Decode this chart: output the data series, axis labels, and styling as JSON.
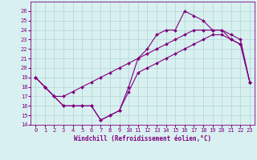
{
  "xlabel": "Windchill (Refroidissement éolien,°C)",
  "x_values": [
    0,
    1,
    2,
    3,
    4,
    5,
    6,
    7,
    8,
    9,
    10,
    11,
    12,
    13,
    14,
    15,
    16,
    17,
    18,
    19,
    20,
    21,
    22,
    23
  ],
  "temp_line": [
    19.0,
    18.0,
    17.0,
    17.0,
    17.5,
    18.0,
    18.5,
    19.0,
    19.5,
    20.0,
    20.5,
    21.0,
    21.5,
    22.0,
    22.5,
    23.0,
    23.5,
    24.0,
    24.0,
    24.0,
    24.0,
    23.5,
    23.0,
    18.5
  ],
  "windchill_line": [
    19.0,
    18.0,
    17.0,
    16.0,
    16.0,
    16.0,
    16.0,
    14.5,
    15.0,
    15.5,
    18.0,
    21.0,
    22.0,
    23.5,
    24.0,
    24.0,
    26.0,
    25.5,
    25.0,
    24.0,
    24.0,
    23.0,
    22.5,
    18.5
  ],
  "wind_line": [
    19.0,
    18.0,
    17.0,
    16.0,
    16.0,
    16.0,
    16.0,
    14.5,
    15.0,
    15.5,
    17.5,
    19.5,
    20.0,
    20.5,
    21.0,
    21.5,
    22.0,
    22.5,
    23.0,
    23.5,
    23.5,
    23.0,
    22.5,
    18.5
  ],
  "line_color": "#800080",
  "bg_color": "#d8f0f0",
  "grid_color": "#b8d8d8",
  "ylim": [
    14,
    27
  ],
  "yticks": [
    14,
    15,
    16,
    17,
    18,
    19,
    20,
    21,
    22,
    23,
    24,
    25,
    26
  ],
  "marker": "D",
  "markersize": 2,
  "tick_fontsize": 5,
  "xlabel_fontsize": 5.5
}
